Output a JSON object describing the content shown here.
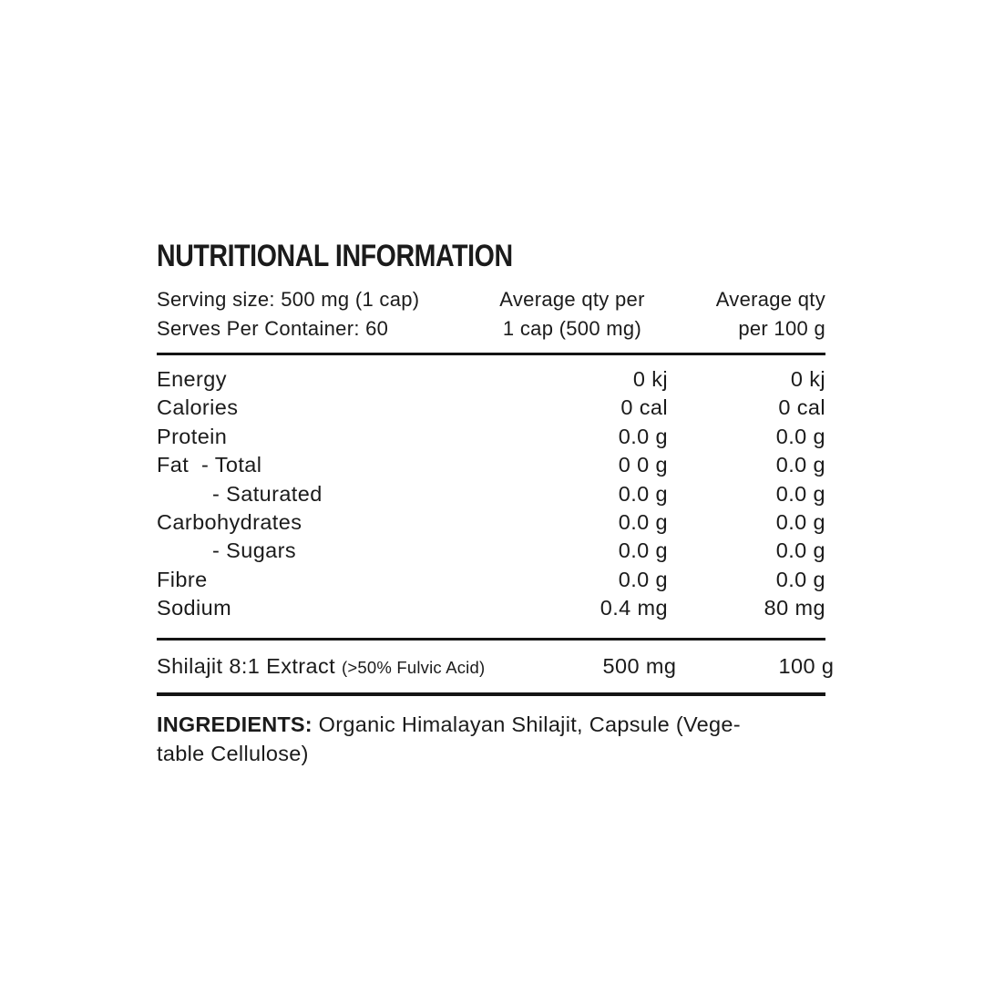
{
  "label": {
    "title": "NUTRITIONAL INFORMATION",
    "serving": {
      "serving_size": "Serving size: 500 mg (1 cap)",
      "serves_per_container": "Serves Per Container: 60"
    },
    "columns": {
      "per_serve_line1": "Average qty per",
      "per_serve_line2": "1 cap (500 mg)",
      "per_100g_line1": "Average qty",
      "per_100g_line2": "per 100 g"
    },
    "table": {
      "rows": [
        {
          "label": "Energy",
          "indent": false,
          "per_serve": "0 kj",
          "per_100g": "0 kj"
        },
        {
          "label": "Calories",
          "indent": false,
          "per_serve": "0 cal",
          "per_100g": "0 cal"
        },
        {
          "label": "Protein",
          "indent": false,
          "per_serve": "0.0 g",
          "per_100g": "0.0 g"
        },
        {
          "label": "Fat  - Total",
          "indent": false,
          "per_serve": "0 0 g",
          "per_100g": "0.0 g"
        },
        {
          "label": "- Saturated",
          "indent": true,
          "per_serve": "0.0 g",
          "per_100g": "0.0 g"
        },
        {
          "label": "Carbohydrates",
          "indent": false,
          "per_serve": "0.0 g",
          "per_100g": "0.0 g"
        },
        {
          "label": "- Sugars",
          "indent": true,
          "per_serve": "0.0 g",
          "per_100g": "0.0 g"
        },
        {
          "label": "Fibre",
          "indent": false,
          "per_serve": "0.0 g",
          "per_100g": "0.0 g"
        },
        {
          "label": "Sodium",
          "indent": false,
          "per_serve": "0.4 mg",
          "per_100g": "80 mg"
        }
      ]
    },
    "active_ingredient": {
      "name": "Shilajit 8:1 Extract",
      "note": "(>50% Fulvic Acid)",
      "per_serve": "500 mg",
      "per_100g": "100 g"
    },
    "ingredients": {
      "heading": "INGREDIENTS:",
      "line1": "Organic Himalayan Shilajit, Capsule (Vege-",
      "line2": "table Cellulose)"
    },
    "colors": {
      "text": "#1b1b1b",
      "background": "#ffffff",
      "rule": "#141414"
    }
  }
}
